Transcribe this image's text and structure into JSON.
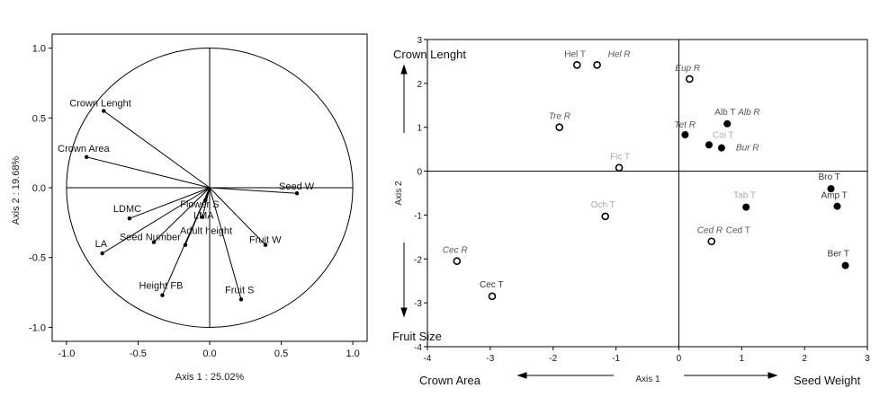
{
  "chart_data": [
    {
      "type": "scatter",
      "subtype": "correlation-circle",
      "title": "",
      "xlabel": "Axis 1 : 25.02%",
      "ylabel": "Axis 2 : 19.68%",
      "xlim": [
        -1.1,
        1.1
      ],
      "ylim": [
        -1.1,
        1.1
      ],
      "xticks": [
        "-1.0",
        "-0.5",
        "0.0",
        "0.5",
        "1.0"
      ],
      "yticks": [
        "1.0",
        "0.5",
        "0.0",
        "-0.5",
        "-1.0"
      ],
      "grid": false,
      "vectors": [
        {
          "label": "Crown Lenght",
          "x": -0.74,
          "y": 0.55
        },
        {
          "label": "Crown Area",
          "x": -0.86,
          "y": 0.22
        },
        {
          "label": "Seed W",
          "x": 0.61,
          "y": -0.04
        },
        {
          "label": "Flower S",
          "x": -0.03,
          "y": -0.09
        },
        {
          "label": "LDMC",
          "x": -0.56,
          "y": -0.22
        },
        {
          "label": "LMA",
          "x": -0.05,
          "y": -0.21
        },
        {
          "label": "Seed Number",
          "x": -0.39,
          "y": -0.39
        },
        {
          "label": "Adult height",
          "x": -0.17,
          "y": -0.41
        },
        {
          "label": "Fruit W",
          "x": 0.39,
          "y": -0.41
        },
        {
          "label": "LA",
          "x": -0.75,
          "y": -0.47
        },
        {
          "label": "Height FB",
          "x": -0.33,
          "y": -0.77
        },
        {
          "label": "Fruit S",
          "x": 0.22,
          "y": -0.8
        }
      ]
    },
    {
      "type": "scatter",
      "title": "",
      "xlabel": "Axis 1",
      "ylabel": "Axis 2",
      "xlim": [
        -4,
        3
      ],
      "ylim": [
        -4,
        3
      ],
      "xticks": [
        "-4",
        "-3",
        "-2",
        "-1",
        "0",
        "1",
        "2",
        "3"
      ],
      "yticks": [
        "3",
        "2",
        "1",
        "0",
        "-1",
        "-2",
        "-3",
        "-4"
      ],
      "grid": false,
      "annotations": {
        "top_left": "Crown Lenght",
        "bottom_left": "Fruit Size",
        "x_left": "Crown Area",
        "x_right": "Seed Weight"
      },
      "points": [
        {
          "label": "Hel T",
          "x": -1.62,
          "y": 2.42,
          "marker": "open",
          "label_color": "#555555",
          "italic": false
        },
        {
          "label": "Hel R",
          "x": -1.3,
          "y": 2.42,
          "marker": "open",
          "label_color": "#555555",
          "italic": true
        },
        {
          "label": "Eup R",
          "x": 0.17,
          "y": 2.1,
          "marker": "open",
          "label_color": "#555555",
          "italic": true
        },
        {
          "label": "Tre R",
          "x": -1.9,
          "y": 1.0,
          "marker": "open",
          "label_color": "#555555",
          "italic": true
        },
        {
          "label": "Alb T",
          "x": 0.77,
          "y": 1.08,
          "marker": "filled",
          "label_color": "#555555",
          "italic": false
        },
        {
          "label": "Alb R",
          "x": 0.77,
          "y": 1.08,
          "marker": "none",
          "label_color": "#555555",
          "italic": true
        },
        {
          "label": "Tet R",
          "x": 0.1,
          "y": 0.83,
          "marker": "filled",
          "label_color": "#555555",
          "italic": true
        },
        {
          "label": "Coi T",
          "x": 0.48,
          "y": 0.6,
          "marker": "filled",
          "label_color": "#aaaaaa",
          "italic": false
        },
        {
          "label": "Bur R",
          "x": 0.68,
          "y": 0.53,
          "marker": "filled",
          "label_color": "#555555",
          "italic": true
        },
        {
          "label": "Fic T",
          "x": -0.95,
          "y": 0.08,
          "marker": "open",
          "label_color": "#aaaaaa",
          "italic": false
        },
        {
          "label": "Bro T",
          "x": 2.42,
          "y": -0.4,
          "marker": "filled",
          "label_color": "#333333",
          "italic": false
        },
        {
          "label": "Amp T",
          "x": 2.52,
          "y": -0.8,
          "marker": "filled",
          "label_color": "#333333",
          "italic": false
        },
        {
          "label": "Tab T",
          "x": 1.07,
          "y": -0.82,
          "marker": "filled",
          "label_color": "#aaaaaa",
          "italic": false
        },
        {
          "label": "Och T",
          "x": -1.17,
          "y": -1.03,
          "marker": "open",
          "label_color": "#aaaaaa",
          "italic": false
        },
        {
          "label": "Ced R",
          "x": 0.52,
          "y": -1.6,
          "marker": "open",
          "label_color": "#555555",
          "italic": true
        },
        {
          "label": "Ced T",
          "x": 0.52,
          "y": -1.6,
          "marker": "none",
          "label_color": "#555555",
          "italic": false
        },
        {
          "label": "Cec R",
          "x": -3.53,
          "y": -2.05,
          "marker": "open",
          "label_color": "#555555",
          "italic": true
        },
        {
          "label": "Ber T",
          "x": 2.65,
          "y": -2.15,
          "marker": "filled",
          "label_color": "#333333",
          "italic": false
        },
        {
          "label": "Cec T",
          "x": -2.97,
          "y": -2.85,
          "marker": "open",
          "label_color": "#333333",
          "italic": false
        }
      ]
    }
  ]
}
